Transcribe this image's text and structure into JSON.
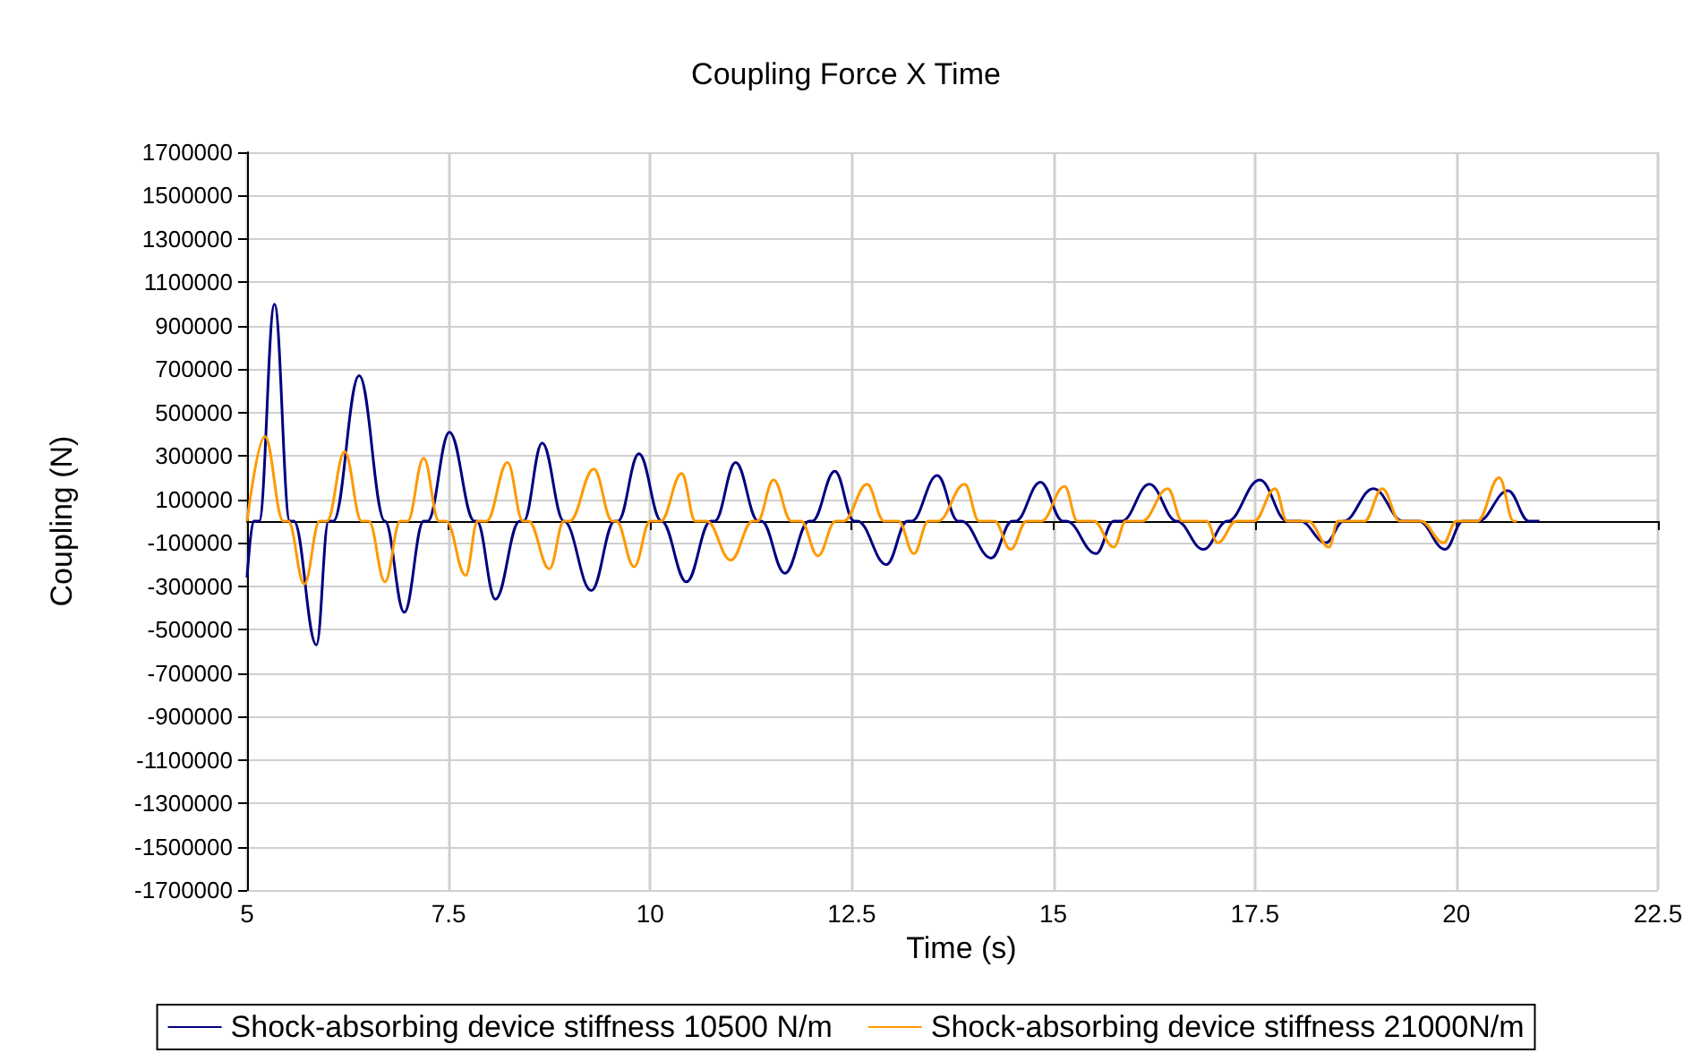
{
  "chart_data": {
    "type": "line",
    "title": "Coupling Force X Time",
    "xlabel": "Time (s)",
    "ylabel": "Coupling (N)",
    "xlim": [
      5,
      22.5
    ],
    "xticks": [
      5,
      7.5,
      10,
      12.5,
      15,
      17.5,
      20,
      22.5
    ],
    "ylim": [
      -1700000,
      1700000
    ],
    "yticks": [
      -1700000,
      -1500000,
      -1300000,
      -1100000,
      -900000,
      -700000,
      -500000,
      -300000,
      -100000,
      100000,
      300000,
      500000,
      700000,
      900000,
      1100000,
      1300000,
      1500000,
      1700000
    ],
    "grid": true,
    "legend": "bottom",
    "marker": "none",
    "line_style": "solid",
    "series": [
      {
        "name": "Shock-absorbing device stiffness 10500 N/m",
        "color": "#000080",
        "x": [
          5,
          5.08,
          5.15,
          5.34,
          5.53,
          5.58,
          5.86,
          6.01,
          6.07,
          6.39,
          6.71,
          6.95,
          7.19,
          7.24,
          7.51,
          7.82,
          7.85,
          8.08,
          8.38,
          8.43,
          8.66,
          8.93,
          9.27,
          9.56,
          9.6,
          9.86,
          10.14,
          10.45,
          10.75,
          10.8,
          11.06,
          11.34,
          11.38,
          11.67,
          11.97,
          12.01,
          12.29,
          12.53,
          12.57,
          12.93,
          13.19,
          13.24,
          13.56,
          13.82,
          13.86,
          14.23,
          14.49,
          14.53,
          14.84,
          15.12,
          15.16,
          15.53,
          15.75,
          15.85,
          16.19,
          16.53,
          16.86,
          17.16,
          17.56,
          17.9,
          18.06,
          18.38,
          18.6,
          18.97,
          19.34,
          19.53,
          19.86,
          20.08,
          20.27,
          20.64,
          20.9,
          21.03
        ],
        "values": [
          -260000,
          0,
          0,
          1000000,
          0,
          0,
          -570000,
          0,
          0,
          670000,
          0,
          -420000,
          0,
          0,
          410000,
          0,
          0,
          -360000,
          0,
          0,
          360000,
          0,
          -320000,
          0,
          0,
          310000,
          0,
          -280000,
          0,
          0,
          270000,
          0,
          0,
          -240000,
          0,
          0,
          230000,
          0,
          0,
          -200000,
          0,
          0,
          210000,
          0,
          0,
          -170000,
          0,
          0,
          180000,
          0,
          0,
          -150000,
          0,
          0,
          170000,
          0,
          -130000,
          0,
          190000,
          0,
          0,
          -100000,
          0,
          150000,
          0,
          0,
          -130000,
          0,
          0,
          140000,
          0,
          0
        ]
      },
      {
        "name": "Shock-absorbing device stiffness 21000N/m",
        "color": "#ff9900",
        "x": [
          5,
          5.22,
          5.45,
          5.51,
          5.71,
          5.9,
          5.99,
          6.21,
          6.42,
          6.51,
          6.71,
          6.9,
          6.99,
          7.19,
          7.38,
          7.47,
          7.71,
          7.86,
          7.97,
          8.23,
          8.42,
          8.49,
          8.75,
          8.93,
          9.0,
          9.3,
          9.53,
          9.58,
          9.8,
          10.0,
          10.13,
          10.39,
          10.56,
          10.7,
          11.0,
          11.27,
          11.33,
          11.53,
          11.75,
          11.87,
          12.08,
          12.3,
          12.4,
          12.69,
          12.9,
          13.08,
          13.27,
          13.45,
          13.57,
          13.9,
          14.08,
          14.27,
          14.47,
          14.67,
          14.85,
          15.14,
          15.3,
          15.5,
          15.75,
          15.9,
          16.1,
          16.42,
          16.6,
          16.9,
          17.04,
          17.27,
          17.49,
          17.75,
          17.9,
          18.16,
          18.42,
          18.53,
          18.86,
          19.08,
          19.3,
          19.56,
          19.84,
          20.0,
          20.26,
          20.53,
          20.71,
          20.75
        ],
        "values": [
          0,
          390000,
          0,
          0,
          -290000,
          0,
          0,
          320000,
          0,
          0,
          -280000,
          0,
          0,
          290000,
          0,
          0,
          -250000,
          0,
          0,
          270000,
          0,
          0,
          -220000,
          0,
          0,
          240000,
          0,
          0,
          -210000,
          0,
          0,
          220000,
          0,
          0,
          -180000,
          0,
          0,
          190000,
          0,
          0,
          -160000,
          0,
          0,
          170000,
          0,
          0,
          -150000,
          0,
          0,
          170000,
          0,
          0,
          -130000,
          0,
          0,
          160000,
          0,
          0,
          -120000,
          0,
          0,
          150000,
          0,
          0,
          -100000,
          0,
          0,
          150000,
          0,
          0,
          -120000,
          0,
          0,
          150000,
          0,
          0,
          -100000,
          0,
          0,
          200000,
          0,
          0
        ]
      }
    ]
  }
}
